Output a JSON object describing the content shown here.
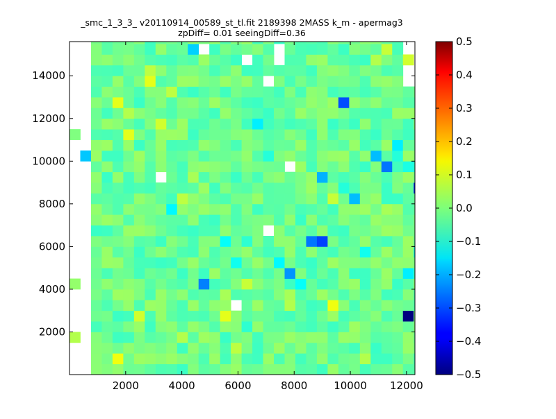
{
  "chart_data": {
    "type": "heatmap",
    "title": "_smc_1_3_3_ v20110914_00589_st_tl.fit 2189398 2MASS k_m - apermag3",
    "subtitle": "zpDiff= 0.01 seeingDiff=0.36",
    "xlabel": "",
    "ylabel": "",
    "xlim": [
      0,
      12300
    ],
    "ylim": [
      0,
      15600
    ],
    "xticks": [
      2000,
      4000,
      6000,
      8000,
      10000,
      12000
    ],
    "yticks": [
      2000,
      4000,
      6000,
      8000,
      10000,
      12000,
      14000
    ],
    "bin_size_x": 383,
    "bin_size_y": 500,
    "grid": false,
    "colorbar": {
      "colormap": "jet",
      "range": [
        -0.5,
        0.5
      ],
      "ticks": [
        0.5,
        0.4,
        0.3,
        0.2,
        0.1,
        0.0,
        -0.1,
        -0.2,
        -0.3,
        -0.4,
        -0.5
      ],
      "tick_labels": [
        "0.5",
        "0.4",
        "0.3",
        "0.2",
        "0.1",
        "0.0",
        "−0.1",
        "−0.2",
        "−0.3",
        "−0.4",
        "−0.5"
      ]
    },
    "base_value": -0.02,
    "noise_amplitude": 0.05,
    "empty_cells": [
      [
        0,
        2
      ],
      [
        0,
        7
      ],
      [
        0,
        9
      ],
      [
        0,
        10
      ],
      [
        0,
        11
      ],
      [
        0,
        12
      ],
      [
        0,
        13
      ],
      [
        0,
        15
      ],
      [
        0,
        16
      ],
      [
        0,
        17
      ],
      [
        0,
        19
      ],
      [
        0,
        21
      ],
      [
        0,
        24
      ],
      [
        0,
        25
      ],
      [
        0,
        27
      ],
      [
        0,
        28
      ],
      [
        0,
        29
      ],
      [
        0,
        30
      ],
      [
        8,
        18
      ],
      [
        12,
        30
      ],
      [
        15,
        6
      ],
      [
        16,
        29
      ],
      [
        18,
        13
      ],
      [
        18,
        27
      ],
      [
        19,
        30
      ],
      [
        19,
        29
      ],
      [
        20,
        19
      ]
    ],
    "outlier_cells": [
      {
        "x": 0,
        "y": 8,
        "value": 0.02
      },
      {
        "x": 0,
        "y": 3,
        "value": 0.05
      },
      {
        "x": 0,
        "y": 22,
        "value": 0.0
      },
      {
        "x": 1,
        "y": 20,
        "value": -0.18
      },
      {
        "x": 3,
        "y": 18,
        "value": -0.07
      },
      {
        "x": 4,
        "y": 1,
        "value": 0.11
      },
      {
        "x": 4,
        "y": 25,
        "value": 0.1
      },
      {
        "x": 5,
        "y": 22,
        "value": 0.1
      },
      {
        "x": 5,
        "y": 24,
        "value": 0.05
      },
      {
        "x": 6,
        "y": 5,
        "value": 0.08
      },
      {
        "x": 7,
        "y": 27,
        "value": 0.1
      },
      {
        "x": 7,
        "y": 28,
        "value": 0.06
      },
      {
        "x": 8,
        "y": 23,
        "value": 0.08
      },
      {
        "x": 9,
        "y": 26,
        "value": 0.06
      },
      {
        "x": 9,
        "y": 15,
        "value": -0.13
      },
      {
        "x": 10,
        "y": 3,
        "value": 0.05
      },
      {
        "x": 10,
        "y": 16,
        "value": 0.06
      },
      {
        "x": 11,
        "y": 18,
        "value": 0.04
      },
      {
        "x": 11,
        "y": 30,
        "value": -0.17
      },
      {
        "x": 12,
        "y": 8,
        "value": -0.25
      },
      {
        "x": 14,
        "y": 7,
        "value": 0.04
      },
      {
        "x": 14,
        "y": 12,
        "value": -0.12
      },
      {
        "x": 14,
        "y": 5,
        "value": 0.1
      },
      {
        "x": 15,
        "y": 10,
        "value": -0.11
      },
      {
        "x": 15,
        "y": 2,
        "value": 0.06
      },
      {
        "x": 16,
        "y": 8,
        "value": 0.07
      },
      {
        "x": 16,
        "y": 12,
        "value": -0.08
      },
      {
        "x": 16,
        "y": 4,
        "value": -0.08
      },
      {
        "x": 17,
        "y": 7,
        "value": -0.03
      },
      {
        "x": 17,
        "y": 23,
        "value": -0.14
      },
      {
        "x": 17,
        "y": 5,
        "value": -0.02
      },
      {
        "x": 18,
        "y": 17,
        "value": -0.04
      },
      {
        "x": 18,
        "y": 20,
        "value": -0.09
      },
      {
        "x": 19,
        "y": 19,
        "value": -0.02
      },
      {
        "x": 19,
        "y": 10,
        "value": -0.13
      },
      {
        "x": 20,
        "y": 9,
        "value": -0.23
      },
      {
        "x": 20,
        "y": 7,
        "value": 0.04
      },
      {
        "x": 20,
        "y": 6,
        "value": 0.05
      },
      {
        "x": 21,
        "y": 8,
        "value": -0.12
      },
      {
        "x": 21,
        "y": 14,
        "value": -0.07
      },
      {
        "x": 21,
        "y": 23,
        "value": -0.05
      },
      {
        "x": 22,
        "y": 12,
        "value": -0.26
      },
      {
        "x": 22,
        "y": 27,
        "value": -0.04
      },
      {
        "x": 23,
        "y": 12,
        "value": -0.31
      },
      {
        "x": 23,
        "y": 18,
        "value": -0.2
      },
      {
        "x": 23,
        "y": 11,
        "value": -0.04
      },
      {
        "x": 24,
        "y": 6,
        "value": 0.11
      },
      {
        "x": 24,
        "y": 15,
        "value": -0.06
      },
      {
        "x": 24,
        "y": 16,
        "value": 0.07
      },
      {
        "x": 24,
        "y": 23,
        "value": -0.07
      },
      {
        "x": 25,
        "y": 17,
        "value": -0.09
      },
      {
        "x": 25,
        "y": 25,
        "value": -0.3
      },
      {
        "x": 25,
        "y": 4,
        "value": -0.04
      },
      {
        "x": 26,
        "y": 4,
        "value": 0.03
      },
      {
        "x": 26,
        "y": 16,
        "value": -0.19
      },
      {
        "x": 26,
        "y": 20,
        "value": -0.04
      },
      {
        "x": 27,
        "y": 14,
        "value": -0.03
      },
      {
        "x": 27,
        "y": 21,
        "value": -0.06
      },
      {
        "x": 27,
        "y": 11,
        "value": -0.11
      },
      {
        "x": 27,
        "y": 1,
        "value": 0.05
      },
      {
        "x": 27,
        "y": 28,
        "value": 0.0
      },
      {
        "x": 28,
        "y": 20,
        "value": -0.19
      },
      {
        "x": 28,
        "y": 10,
        "value": 0.02
      },
      {
        "x": 28,
        "y": 29,
        "value": 0.05
      },
      {
        "x": 28,
        "y": 26,
        "value": -0.04
      },
      {
        "x": 28,
        "y": 2,
        "value": -0.07
      },
      {
        "x": 29,
        "y": 19,
        "value": -0.26
      },
      {
        "x": 29,
        "y": 5,
        "value": -0.05
      },
      {
        "x": 29,
        "y": 15,
        "value": 0.04
      },
      {
        "x": 29,
        "y": 30,
        "value": 0.07
      },
      {
        "x": 30,
        "y": 21,
        "value": -0.14
      },
      {
        "x": 30,
        "y": 20,
        "value": -0.09
      },
      {
        "x": 31,
        "y": 29,
        "value": 0.08
      },
      {
        "x": 31,
        "y": 19,
        "value": -0.1
      },
      {
        "x": 31,
        "y": 9,
        "value": -0.14
      },
      {
        "x": 31,
        "y": 5,
        "value": -0.5
      },
      {
        "x": 32,
        "y": 17,
        "value": -0.35
      },
      {
        "x": 32,
        "y": 11,
        "value": -0.13
      },
      {
        "x": 33,
        "y": 19,
        "value": -0.14
      },
      {
        "x": 33,
        "y": 17,
        "value": -0.02
      },
      {
        "x": 34,
        "y": 20,
        "value": -0.1
      },
      {
        "x": 34,
        "y": 16,
        "value": -0.03
      },
      {
        "x": 35,
        "y": 17,
        "value": -0.19
      },
      {
        "x": 35,
        "y": 25,
        "value": -0.16
      },
      {
        "x": 35,
        "y": 9,
        "value": 0.02
      },
      {
        "x": 35,
        "y": 6,
        "value": 0.0
      },
      {
        "x": 36,
        "y": 15,
        "value": -0.06
      },
      {
        "x": 36,
        "y": 11,
        "value": -0.02
      },
      {
        "x": 36,
        "y": 22,
        "value": -0.11
      },
      {
        "x": 36,
        "y": 28,
        "value": -0.03
      },
      {
        "x": 37,
        "y": 13,
        "value": -0.02
      },
      {
        "x": 37,
        "y": 26,
        "value": -0.02
      }
    ]
  }
}
